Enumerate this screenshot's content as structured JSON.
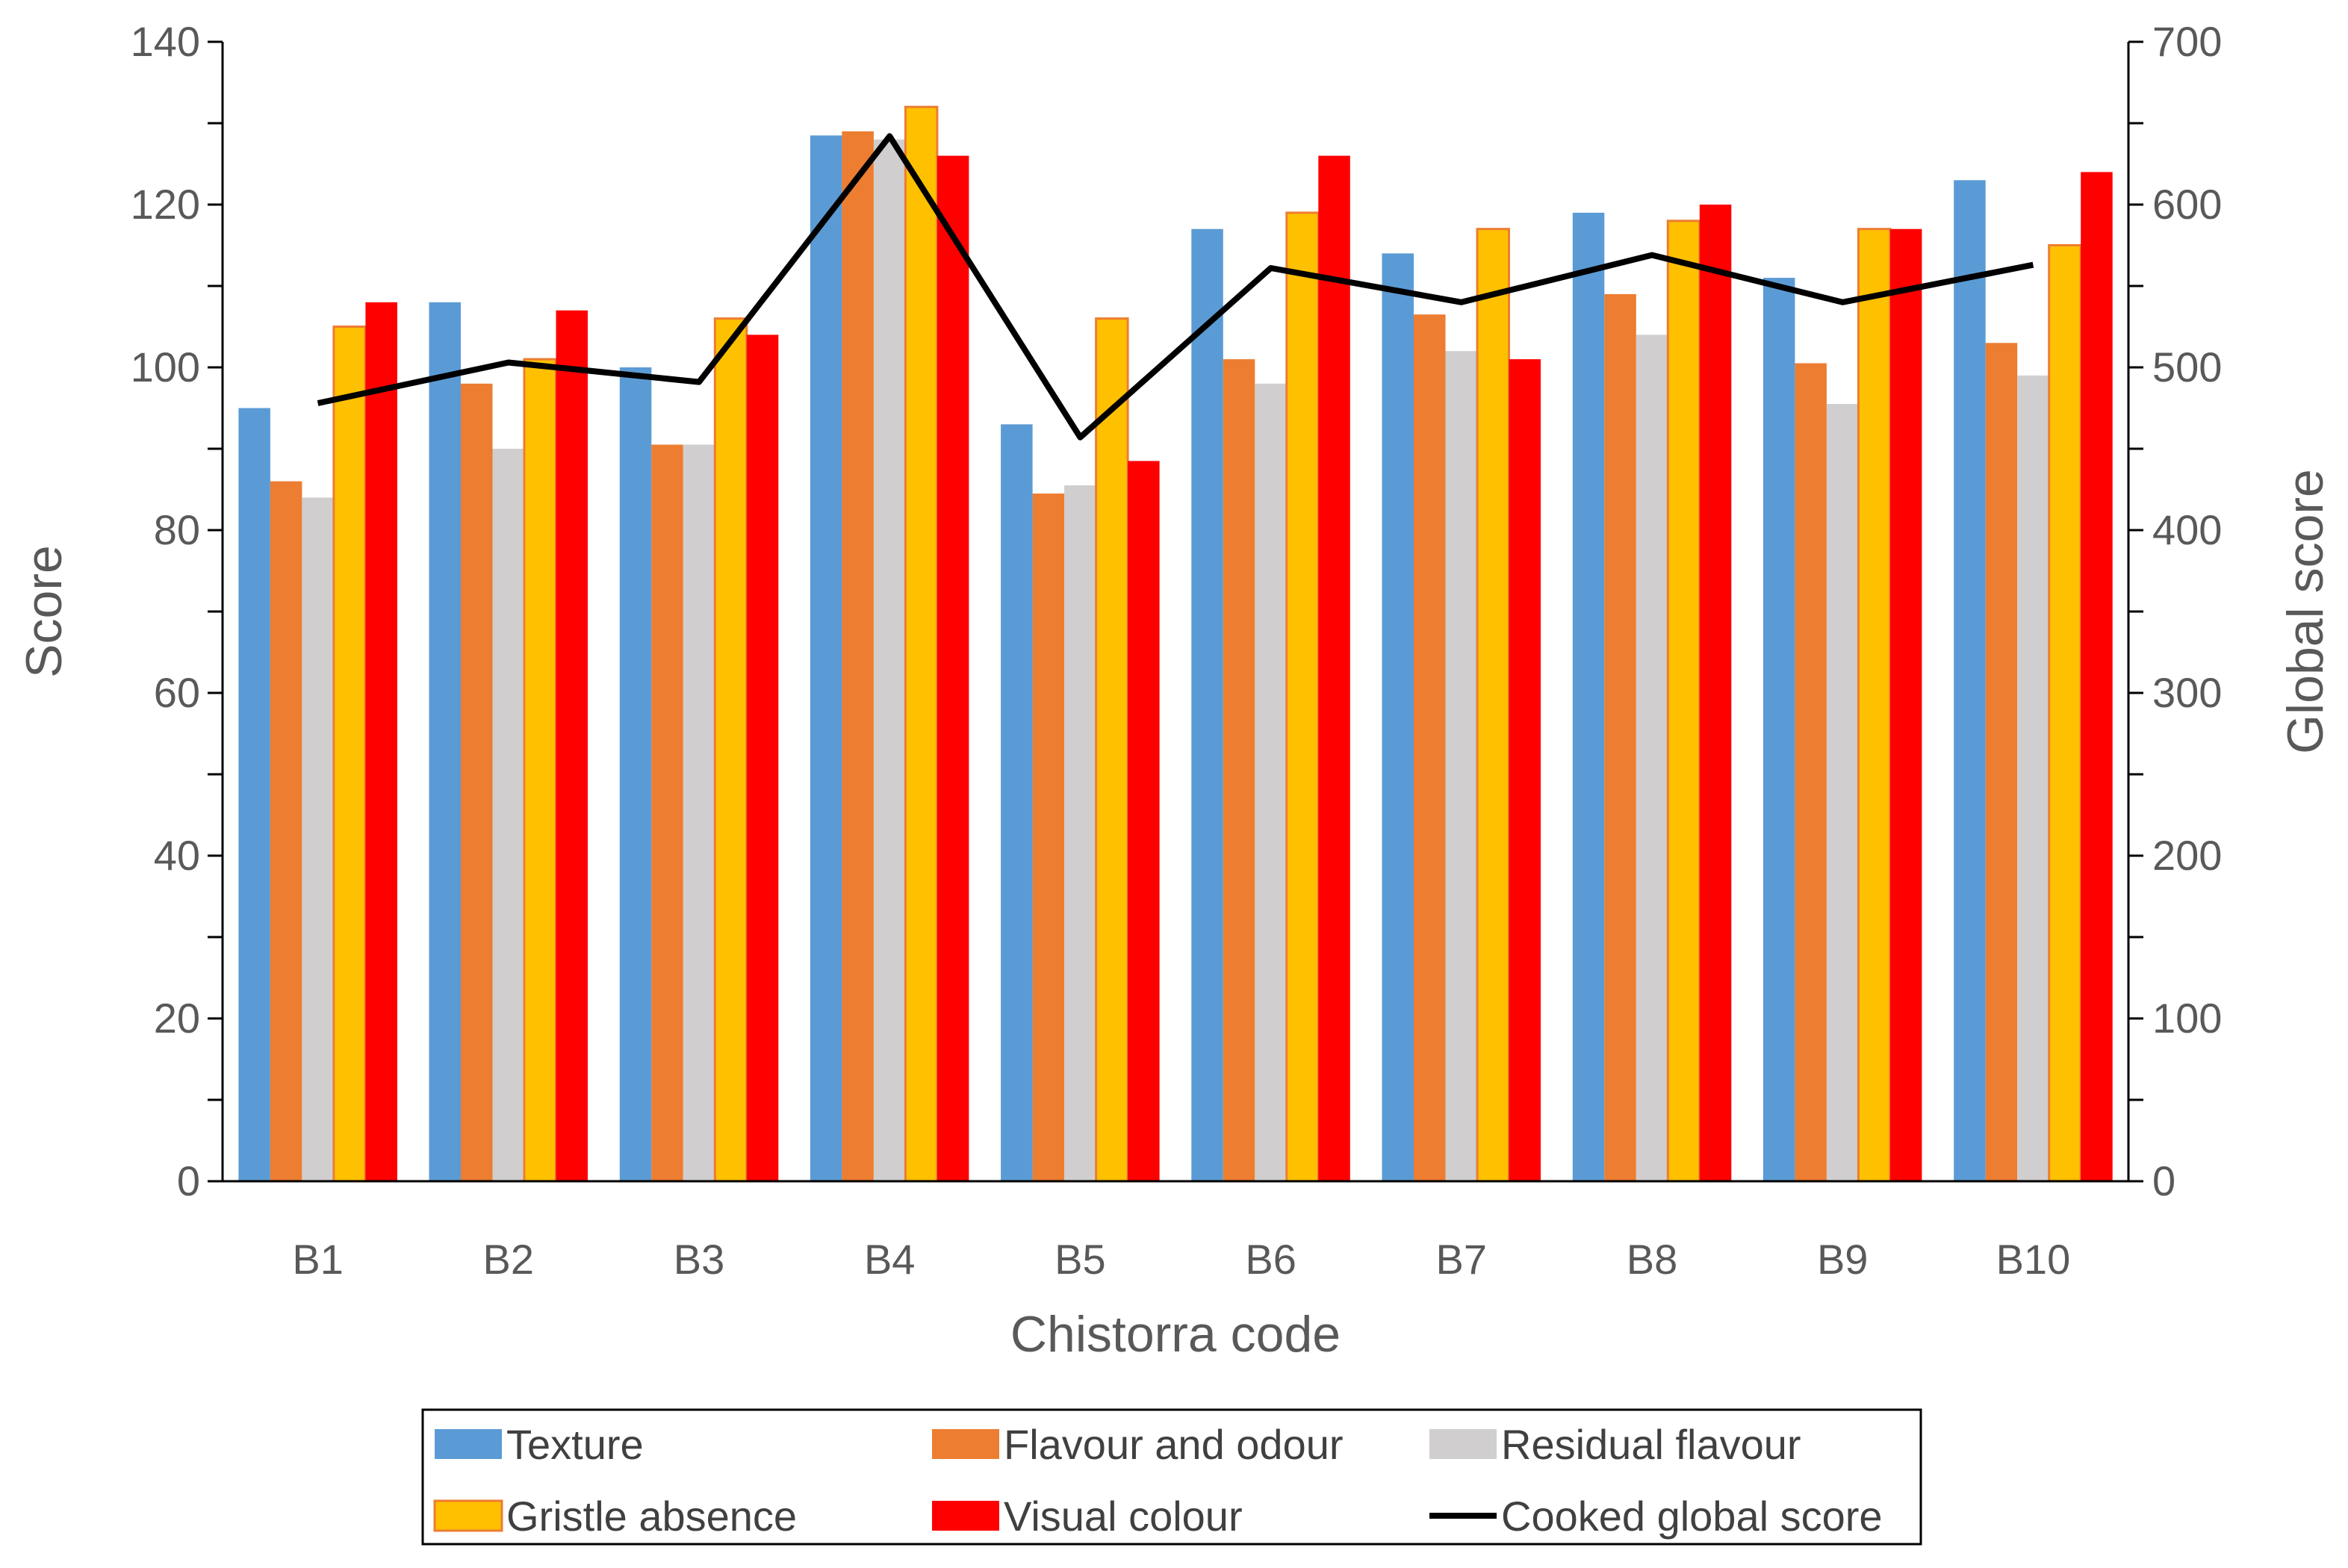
{
  "chart_data": {
    "type": "bar",
    "xlabel": "Chistorra  code",
    "ylabel": "Score",
    "y2label": "Global score",
    "categories": [
      "B1",
      "B2",
      "B3",
      "B4",
      "B5",
      "B6",
      "B7",
      "B8",
      "B9",
      "B10"
    ],
    "ylim": [
      0,
      140
    ],
    "yticks": [
      "0",
      "20",
      "40",
      "60",
      "80",
      "100",
      "120",
      "140"
    ],
    "y2lim": [
      0,
      700
    ],
    "y2ticks": [
      "0",
      "100",
      "200",
      "300",
      "400",
      "500",
      "600",
      "700"
    ],
    "grid": false,
    "legend_position": "bottom",
    "series": [
      {
        "name": "Texture",
        "type": "bar",
        "color": "#5B9BD5",
        "values": [
          95,
          108,
          100,
          128.5,
          93,
          117,
          114,
          119,
          111,
          123
        ]
      },
      {
        "name": "Flavour and odour",
        "type": "bar",
        "color": "#ED7D31",
        "values": [
          86,
          98,
          90.5,
          129,
          84.5,
          101,
          106.5,
          109,
          100.5,
          103
        ]
      },
      {
        "name": "Residual flavour",
        "type": "bar",
        "color": "#D0CECE",
        "values": [
          84,
          90,
          90.5,
          128,
          85.5,
          98,
          102,
          104,
          95.5,
          99
        ]
      },
      {
        "name": "Gristle absence",
        "type": "bar",
        "color": "#FFC000",
        "stroke": "#ED7D31",
        "values": [
          105,
          101,
          106,
          132,
          106,
          119,
          117,
          118,
          117,
          115
        ]
      },
      {
        "name": "Visual colour",
        "type": "bar",
        "color": "#FF0000",
        "values": [
          108,
          107,
          104,
          126,
          88.5,
          126,
          101,
          120,
          117,
          124
        ]
      },
      {
        "name": "Cooked global score",
        "type": "line",
        "axis": "right",
        "color": "#000000",
        "values": [
          478,
          503,
          491,
          642,
          457,
          561,
          540,
          569,
          540,
          563
        ]
      }
    ]
  }
}
